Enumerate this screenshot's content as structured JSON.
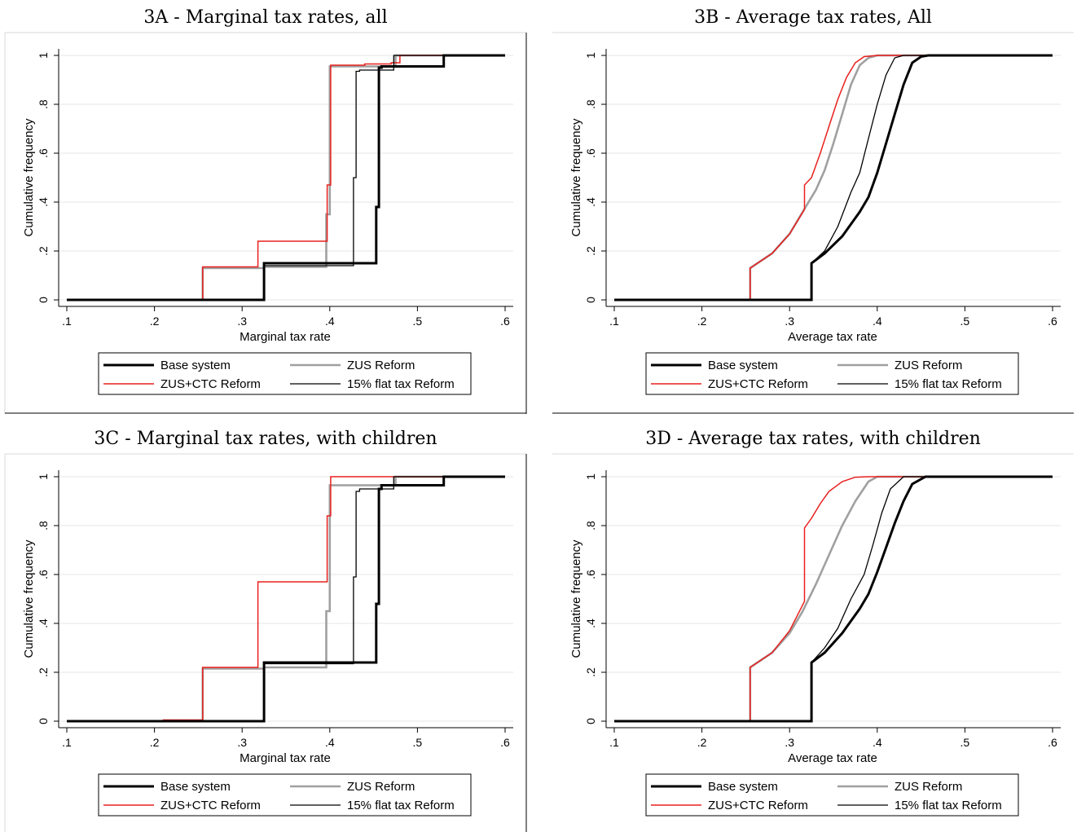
{
  "figure": {
    "legend_labels": [
      "Base system",
      "ZUS Reform",
      "ZUS+CTC Reform",
      "15% flat tax Reform"
    ]
  },
  "colors": {
    "base": "#000000",
    "zus": "#a0a0a0",
    "zusctc": "#e8201e",
    "flat": "#000000",
    "grid": "#e6e6e6"
  },
  "chart_data": [
    {
      "type": "line",
      "title": "3A - Marginal tax rates, all",
      "xlabel": "Marginal tax rate",
      "ylabel": "Cumulative frequency",
      "xlim": [
        0.1,
        0.6
      ],
      "ylim": [
        0,
        1
      ],
      "xticks": [
        0.1,
        0.2,
        0.3,
        0.4,
        0.5,
        0.6
      ],
      "xtick_labels": [
        ".1",
        ".2",
        ".3",
        ".4",
        ".5",
        ".6"
      ],
      "yticks": [
        0,
        0.2,
        0.4,
        0.6,
        0.8,
        1
      ],
      "ytick_labels": [
        "0",
        ".2",
        ".4",
        ".6",
        ".8",
        "1"
      ],
      "grid": true,
      "legend": "bottom",
      "series": [
        {
          "name": "Base system",
          "x": [
            0.1,
            0.325,
            0.325,
            0.453,
            0.453,
            0.456,
            0.456,
            0.459,
            0.459,
            0.53,
            0.53,
            0.6
          ],
          "y": [
            0,
            0,
            0.15,
            0.15,
            0.38,
            0.38,
            0.95,
            0.95,
            0.955,
            0.955,
            1,
            1
          ]
        },
        {
          "name": "ZUS Reform",
          "x": [
            0.1,
            0.255,
            0.255,
            0.325,
            0.325,
            0.396,
            0.396,
            0.4,
            0.4,
            0.475,
            0.475,
            0.6
          ],
          "y": [
            0,
            0,
            0.13,
            0.13,
            0.135,
            0.135,
            0.35,
            0.35,
            0.955,
            0.955,
            1,
            1
          ]
        },
        {
          "name": "ZUS+CTC Reform",
          "x": [
            0.1,
            0.255,
            0.255,
            0.318,
            0.318,
            0.397,
            0.397,
            0.401,
            0.401,
            0.44,
            0.44,
            0.47,
            0.47,
            0.48,
            0.48,
            0.6
          ],
          "y": [
            0,
            0,
            0.135,
            0.135,
            0.24,
            0.24,
            0.47,
            0.47,
            0.96,
            0.96,
            0.965,
            0.965,
            0.97,
            0.97,
            1,
            1
          ]
        },
        {
          "name": "15% flat tax Reform",
          "x": [
            0.1,
            0.325,
            0.325,
            0.427,
            0.427,
            0.43,
            0.43,
            0.434,
            0.434,
            0.473,
            0.473,
            0.6
          ],
          "y": [
            0,
            0,
            0.14,
            0.14,
            0.5,
            0.5,
            0.935,
            0.935,
            0.94,
            0.94,
            1,
            1
          ]
        }
      ]
    },
    {
      "type": "line",
      "title": "3B - Average tax rates, All",
      "xlabel": "Average tax rate",
      "ylabel": "Cumulative frequency",
      "xlim": [
        0.1,
        0.6
      ],
      "ylim": [
        0,
        1
      ],
      "xticks": [
        0.1,
        0.2,
        0.3,
        0.4,
        0.5,
        0.6
      ],
      "xtick_labels": [
        ".1",
        ".2",
        ".3",
        ".4",
        ".5",
        ".6"
      ],
      "yticks": [
        0,
        0.2,
        0.4,
        0.6,
        0.8,
        1
      ],
      "ytick_labels": [
        "0",
        ".2",
        ".4",
        ".6",
        ".8",
        "1"
      ],
      "grid": true,
      "legend": "bottom",
      "series": [
        {
          "name": "Base system",
          "x": [
            0.1,
            0.325,
            0.325,
            0.34,
            0.36,
            0.38,
            0.39,
            0.4,
            0.41,
            0.42,
            0.43,
            0.44,
            0.45,
            0.458,
            0.6
          ],
          "y": [
            0,
            0,
            0.15,
            0.19,
            0.26,
            0.36,
            0.42,
            0.52,
            0.64,
            0.76,
            0.88,
            0.97,
            0.995,
            1,
            1
          ]
        },
        {
          "name": "ZUS Reform",
          "x": [
            0.1,
            0.255,
            0.255,
            0.28,
            0.3,
            0.315,
            0.33,
            0.34,
            0.35,
            0.36,
            0.37,
            0.38,
            0.39,
            0.4,
            0.6
          ],
          "y": [
            0,
            0,
            0.13,
            0.19,
            0.27,
            0.36,
            0.45,
            0.53,
            0.64,
            0.76,
            0.88,
            0.96,
            0.99,
            1,
            1
          ]
        },
        {
          "name": "ZUS+CTC Reform",
          "x": [
            0.1,
            0.255,
            0.255,
            0.28,
            0.3,
            0.317,
            0.317,
            0.325,
            0.335,
            0.345,
            0.355,
            0.365,
            0.375,
            0.385,
            0.4,
            0.6
          ],
          "y": [
            0,
            0,
            0.13,
            0.19,
            0.27,
            0.37,
            0.47,
            0.5,
            0.6,
            0.71,
            0.82,
            0.91,
            0.97,
            0.995,
            1,
            1
          ]
        },
        {
          "name": "15% flat tax Reform",
          "x": [
            0.1,
            0.325,
            0.325,
            0.34,
            0.355,
            0.37,
            0.38,
            0.39,
            0.4,
            0.41,
            0.42,
            0.43,
            0.6
          ],
          "y": [
            0,
            0,
            0.15,
            0.2,
            0.3,
            0.44,
            0.52,
            0.66,
            0.8,
            0.92,
            0.99,
            1,
            1
          ]
        }
      ]
    },
    {
      "type": "line",
      "title": "3C - Marginal tax rates, with children",
      "xlabel": "Marginal tax rate",
      "ylabel": "Cumulative frequency",
      "xlim": [
        0.1,
        0.6
      ],
      "ylim": [
        0,
        1
      ],
      "xticks": [
        0.1,
        0.2,
        0.3,
        0.4,
        0.5,
        0.6
      ],
      "xtick_labels": [
        ".1",
        ".2",
        ".3",
        ".4",
        ".5",
        ".6"
      ],
      "yticks": [
        0,
        0.2,
        0.4,
        0.6,
        0.8,
        1
      ],
      "ytick_labels": [
        "0",
        ".2",
        ".4",
        ".6",
        ".8",
        "1"
      ],
      "grid": true,
      "legend": "bottom",
      "series": [
        {
          "name": "Base system",
          "x": [
            0.1,
            0.325,
            0.325,
            0.453,
            0.453,
            0.456,
            0.456,
            0.459,
            0.459,
            0.53,
            0.53,
            0.6
          ],
          "y": [
            0,
            0,
            0.24,
            0.24,
            0.48,
            0.48,
            0.95,
            0.95,
            0.965,
            0.965,
            1,
            1
          ]
        },
        {
          "name": "ZUS Reform",
          "x": [
            0.1,
            0.255,
            0.255,
            0.325,
            0.325,
            0.396,
            0.396,
            0.4,
            0.4,
            0.475,
            0.475,
            0.6
          ],
          "y": [
            0,
            0,
            0.215,
            0.215,
            0.22,
            0.22,
            0.45,
            0.45,
            0.965,
            0.965,
            1,
            1
          ]
        },
        {
          "name": "ZUS+CTC Reform",
          "x": [
            0.1,
            0.21,
            0.21,
            0.255,
            0.255,
            0.318,
            0.318,
            0.397,
            0.397,
            0.401,
            0.401,
            0.6
          ],
          "y": [
            0,
            0,
            0.005,
            0.005,
            0.22,
            0.22,
            0.57,
            0.57,
            0.84,
            0.84,
            1,
            1
          ]
        },
        {
          "name": "15% flat tax Reform",
          "x": [
            0.1,
            0.325,
            0.325,
            0.427,
            0.427,
            0.43,
            0.43,
            0.434,
            0.434,
            0.473,
            0.473,
            0.6
          ],
          "y": [
            0,
            0,
            0.235,
            0.235,
            0.59,
            0.59,
            0.94,
            0.94,
            0.95,
            0.95,
            1,
            1
          ]
        }
      ]
    },
    {
      "type": "line",
      "title": "3D - Average tax rates, with children",
      "xlabel": "Average tax rate",
      "ylabel": "Cumulative frequency",
      "xlim": [
        0.1,
        0.6
      ],
      "ylim": [
        0,
        1
      ],
      "xticks": [
        0.1,
        0.2,
        0.3,
        0.4,
        0.5,
        0.6
      ],
      "xtick_labels": [
        ".1",
        ".2",
        ".3",
        ".4",
        ".5",
        ".6"
      ],
      "yticks": [
        0,
        0.2,
        0.4,
        0.6,
        0.8,
        1
      ],
      "ytick_labels": [
        "0",
        ".2",
        ".4",
        ".6",
        ".8",
        "1"
      ],
      "grid": true,
      "legend": "bottom",
      "series": [
        {
          "name": "Base system",
          "x": [
            0.1,
            0.325,
            0.325,
            0.34,
            0.36,
            0.38,
            0.39,
            0.4,
            0.41,
            0.42,
            0.43,
            0.44,
            0.455,
            0.6
          ],
          "y": [
            0,
            0,
            0.24,
            0.28,
            0.36,
            0.46,
            0.52,
            0.61,
            0.71,
            0.81,
            0.9,
            0.97,
            1,
            1
          ]
        },
        {
          "name": "ZUS Reform",
          "x": [
            0.1,
            0.255,
            0.255,
            0.28,
            0.3,
            0.315,
            0.33,
            0.345,
            0.36,
            0.375,
            0.39,
            0.4,
            0.6
          ],
          "y": [
            0,
            0,
            0.22,
            0.28,
            0.36,
            0.45,
            0.56,
            0.68,
            0.8,
            0.9,
            0.98,
            1,
            1
          ]
        },
        {
          "name": "ZUS+CTC Reform",
          "x": [
            0.1,
            0.255,
            0.255,
            0.28,
            0.3,
            0.317,
            0.317,
            0.325,
            0.335,
            0.345,
            0.36,
            0.375,
            0.39,
            0.6
          ],
          "y": [
            0,
            0,
            0.22,
            0.28,
            0.37,
            0.49,
            0.79,
            0.83,
            0.89,
            0.94,
            0.98,
            0.998,
            1,
            1
          ]
        },
        {
          "name": "15% flat tax Reform",
          "x": [
            0.1,
            0.325,
            0.325,
            0.34,
            0.355,
            0.37,
            0.385,
            0.395,
            0.405,
            0.415,
            0.43,
            0.6
          ],
          "y": [
            0,
            0,
            0.24,
            0.3,
            0.38,
            0.5,
            0.6,
            0.72,
            0.85,
            0.95,
            1,
            1
          ]
        }
      ]
    }
  ]
}
